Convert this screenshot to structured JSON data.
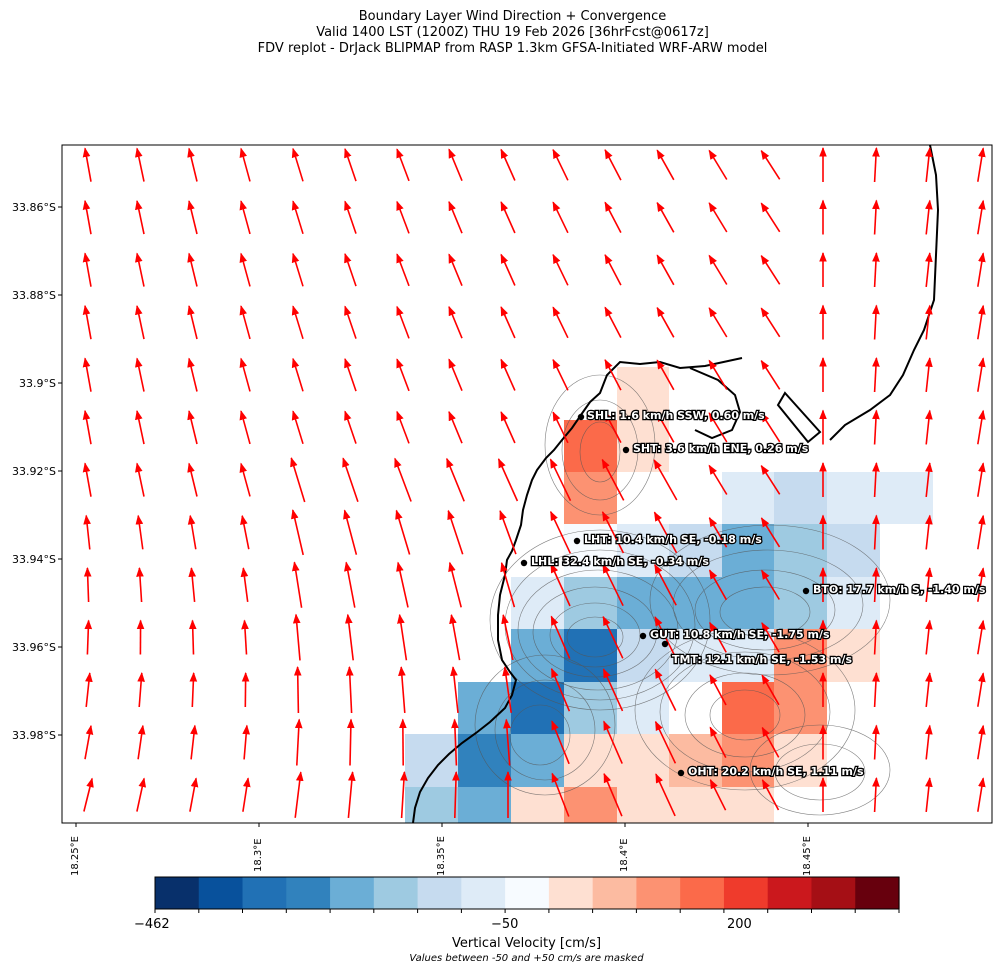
{
  "title": {
    "line1": "Boundary Layer Wind Direction + Convergence",
    "line2": "Valid 1400 LST (1200Z) THU 19 Feb 2026 [36hrFcst@0617z]",
    "line3": "FDV replot - DrJack BLIPMAP from RASP 1.3km GFSA-Initiated WRF-ARW model"
  },
  "axes": {
    "lat_ticks": [
      "33.86°S",
      "33.88°S",
      "33.9°S",
      "33.92°S",
      "33.94°S",
      "33.96°S",
      "33.98°S"
    ],
    "lon_ticks": [
      "18.25°E",
      "18.3°E",
      "18.35°E",
      "18.4°E",
      "18.45°E"
    ]
  },
  "stations": [
    {
      "id": "SHL",
      "label": "SHL: 1.6 km/h SSW, 0.60 m/s"
    },
    {
      "id": "SHT",
      "label": "SHT: 3.6 km/h ENE, 0.26 m/s"
    },
    {
      "id": "LHT",
      "label": "LHT: 10.4 km/h SE, -0.18 m/s"
    },
    {
      "id": "LHL",
      "label": "LHL: 32.4 km/h SE, -0.34 m/s"
    },
    {
      "id": "BTO",
      "label": "BTO: 17.7 km/h S, -1.40 m/s"
    },
    {
      "id": "GUT",
      "label": "GUT: 10.8 km/h SE, -1.75 m/s"
    },
    {
      "id": "TMT",
      "label": "TMT: 12.1 km/h SE, -1.53 m/s"
    },
    {
      "id": "OHT",
      "label": "OHT: 20.2 km/h SE, 1.11 m/s"
    }
  ],
  "colorbar": {
    "title": "Vertical Velocity [cm/s]",
    "note": "Values between -50 and +50 cm/s are masked",
    "tick_labels": [
      "−462",
      "−50",
      "200"
    ],
    "colors": [
      "#08306b",
      "#08519c",
      "#2171b5",
      "#3182bd",
      "#6baed6",
      "#9ecae1",
      "#c6dbef",
      "#deebf7",
      "#f7fbff",
      "#fee0d2",
      "#fcbba1",
      "#fc9272",
      "#fb6a4a",
      "#ef3b2c",
      "#cb181d",
      "#a50f15",
      "#67000d"
    ]
  },
  "colors": {
    "wind_arrow": "#ff0000",
    "coastline": "#000000",
    "contour": "#555555"
  }
}
